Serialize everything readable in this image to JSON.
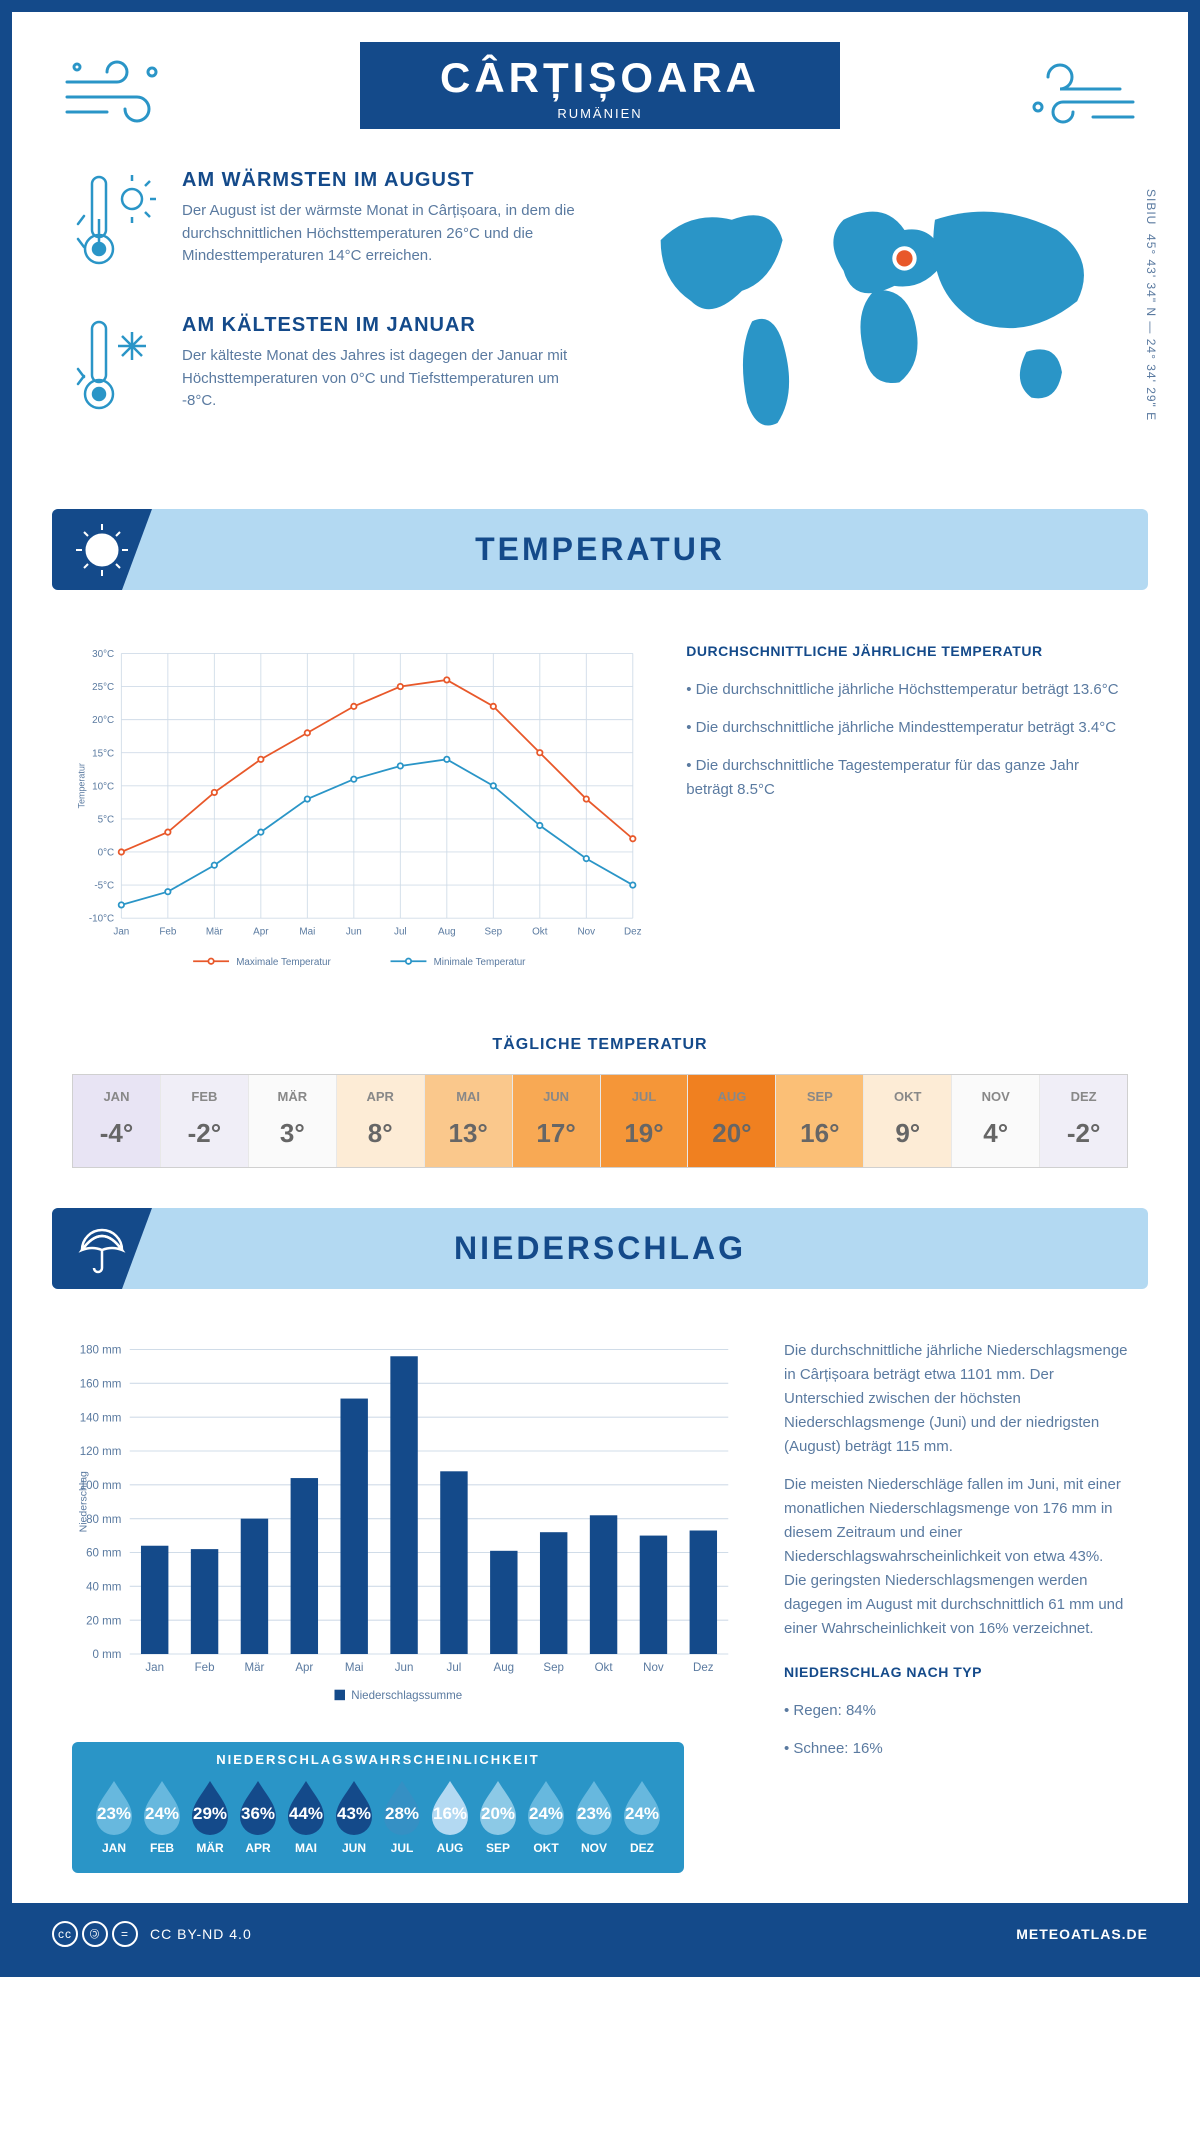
{
  "header": {
    "title": "CÂRȚIȘOARA",
    "subtitle": "RUMÄNIEN"
  },
  "coords": {
    "text": "45° 43' 34\" N — 24° 34' 29\" E",
    "region": "SIBIU"
  },
  "facts": {
    "warm": {
      "title": "AM WÄRMSTEN IM AUGUST",
      "text": "Der August ist der wärmste Monat in Cârțișoara, in dem die durchschnittlichen Höchsttemperaturen 26°C und die Mindesttemperaturen 14°C erreichen."
    },
    "cold": {
      "title": "AM KÄLTESTEN IM JANUAR",
      "text": "Der kälteste Monat des Jahres ist dagegen der Januar mit Höchsttemperaturen von 0°C und Tiefsttemperaturen um -8°C."
    }
  },
  "sections": {
    "temperature": "TEMPERATUR",
    "precipitation": "NIEDERSCHLAG"
  },
  "temp_chart": {
    "type": "line",
    "months": [
      "Jan",
      "Feb",
      "Mär",
      "Apr",
      "Mai",
      "Jun",
      "Jul",
      "Aug",
      "Sep",
      "Okt",
      "Nov",
      "Dez"
    ],
    "max_series": [
      0,
      3,
      9,
      14,
      18,
      22,
      25,
      26,
      22,
      15,
      8,
      2
    ],
    "min_series": [
      -8,
      -6,
      -2,
      3,
      8,
      11,
      13,
      14,
      10,
      4,
      -1,
      -5
    ],
    "ylim": [
      -10,
      30
    ],
    "ystep": 5,
    "ylabel": "Temperatur",
    "colors": {
      "max": "#e8582a",
      "min": "#2a95c7",
      "grid": "#d0dce8",
      "axis": "#5a7aa0"
    },
    "legend": {
      "max": "Maximale Temperatur",
      "min": "Minimale Temperatur"
    },
    "line_width": 2,
    "marker_r": 3
  },
  "temp_info": {
    "title": "DURCHSCHNITTLICHE JÄHRLICHE TEMPERATUR",
    "bullets": [
      "• Die durchschnittliche jährliche Höchsttemperatur beträgt 13.6°C",
      "• Die durchschnittliche jährliche Mindesttemperatur beträgt 3.4°C",
      "• Die durchschnittliche Tagestemperatur für das ganze Jahr beträgt 8.5°C"
    ]
  },
  "daily_temp": {
    "title": "TÄGLICHE TEMPERATUR",
    "months": [
      "JAN",
      "FEB",
      "MÄR",
      "APR",
      "MAI",
      "JUN",
      "JUL",
      "AUG",
      "SEP",
      "OKT",
      "NOV",
      "DEZ"
    ],
    "values": [
      "-4°",
      "-2°",
      "3°",
      "8°",
      "13°",
      "17°",
      "19°",
      "20°",
      "16°",
      "9°",
      "4°",
      "-2°"
    ],
    "bg_colors": [
      "#e8e4f4",
      "#f0eef7",
      "#fafafa",
      "#fdecd6",
      "#fac88c",
      "#f8a954",
      "#f59638",
      "#f08020",
      "#fbbf76",
      "#fdecd6",
      "#fafafa",
      "#f0eef7"
    ]
  },
  "precip_chart": {
    "type": "bar",
    "months": [
      "Jan",
      "Feb",
      "Mär",
      "Apr",
      "Mai",
      "Jun",
      "Jul",
      "Aug",
      "Sep",
      "Okt",
      "Nov",
      "Dez"
    ],
    "values": [
      64,
      62,
      80,
      104,
      151,
      176,
      108,
      61,
      72,
      82,
      70,
      73
    ],
    "ylim": [
      0,
      180
    ],
    "ystep": 20,
    "ylabel": "Niederschlag",
    "bar_color": "#144a8a",
    "grid": "#d0dce8",
    "legend": "Niederschlagssumme",
    "bar_width": 0.55
  },
  "precip_info": {
    "p1": "Die durchschnittliche jährliche Niederschlagsmenge in Cârțișoara beträgt etwa 1101 mm. Der Unterschied zwischen der höchsten Niederschlagsmenge (Juni) und der niedrigsten (August) beträgt 115 mm.",
    "p2": "Die meisten Niederschläge fallen im Juni, mit einer monatlichen Niederschlagsmenge von 176 mm in diesem Zeitraum und einer Niederschlagswahrscheinlichkeit von etwa 43%. Die geringsten Niederschlagsmengen werden dagegen im August mit durchschnittlich 61 mm und einer Wahrscheinlichkeit von 16% verzeichnet.",
    "type_title": "NIEDERSCHLAG NACH TYP",
    "types": [
      "• Regen: 84%",
      "• Schnee: 16%"
    ]
  },
  "precip_prob": {
    "title": "NIEDERSCHLAGSWAHRSCHEINLICHKEIT",
    "months": [
      "JAN",
      "FEB",
      "MÄR",
      "APR",
      "MAI",
      "JUN",
      "JUL",
      "AUG",
      "SEP",
      "OKT",
      "NOV",
      "DEZ"
    ],
    "values": [
      "23%",
      "24%",
      "29%",
      "36%",
      "44%",
      "43%",
      "28%",
      "16%",
      "20%",
      "24%",
      "23%",
      "24%"
    ],
    "colors": [
      "#67b8de",
      "#67b8de",
      "#144a8a",
      "#144a8a",
      "#144a8a",
      "#144a8a",
      "#3590c4",
      "#b3d9f2",
      "#8cc9e6",
      "#67b8de",
      "#67b8de",
      "#67b8de"
    ]
  },
  "footer": {
    "license": "CC BY-ND 4.0",
    "site": "METEOATLAS.DE"
  }
}
